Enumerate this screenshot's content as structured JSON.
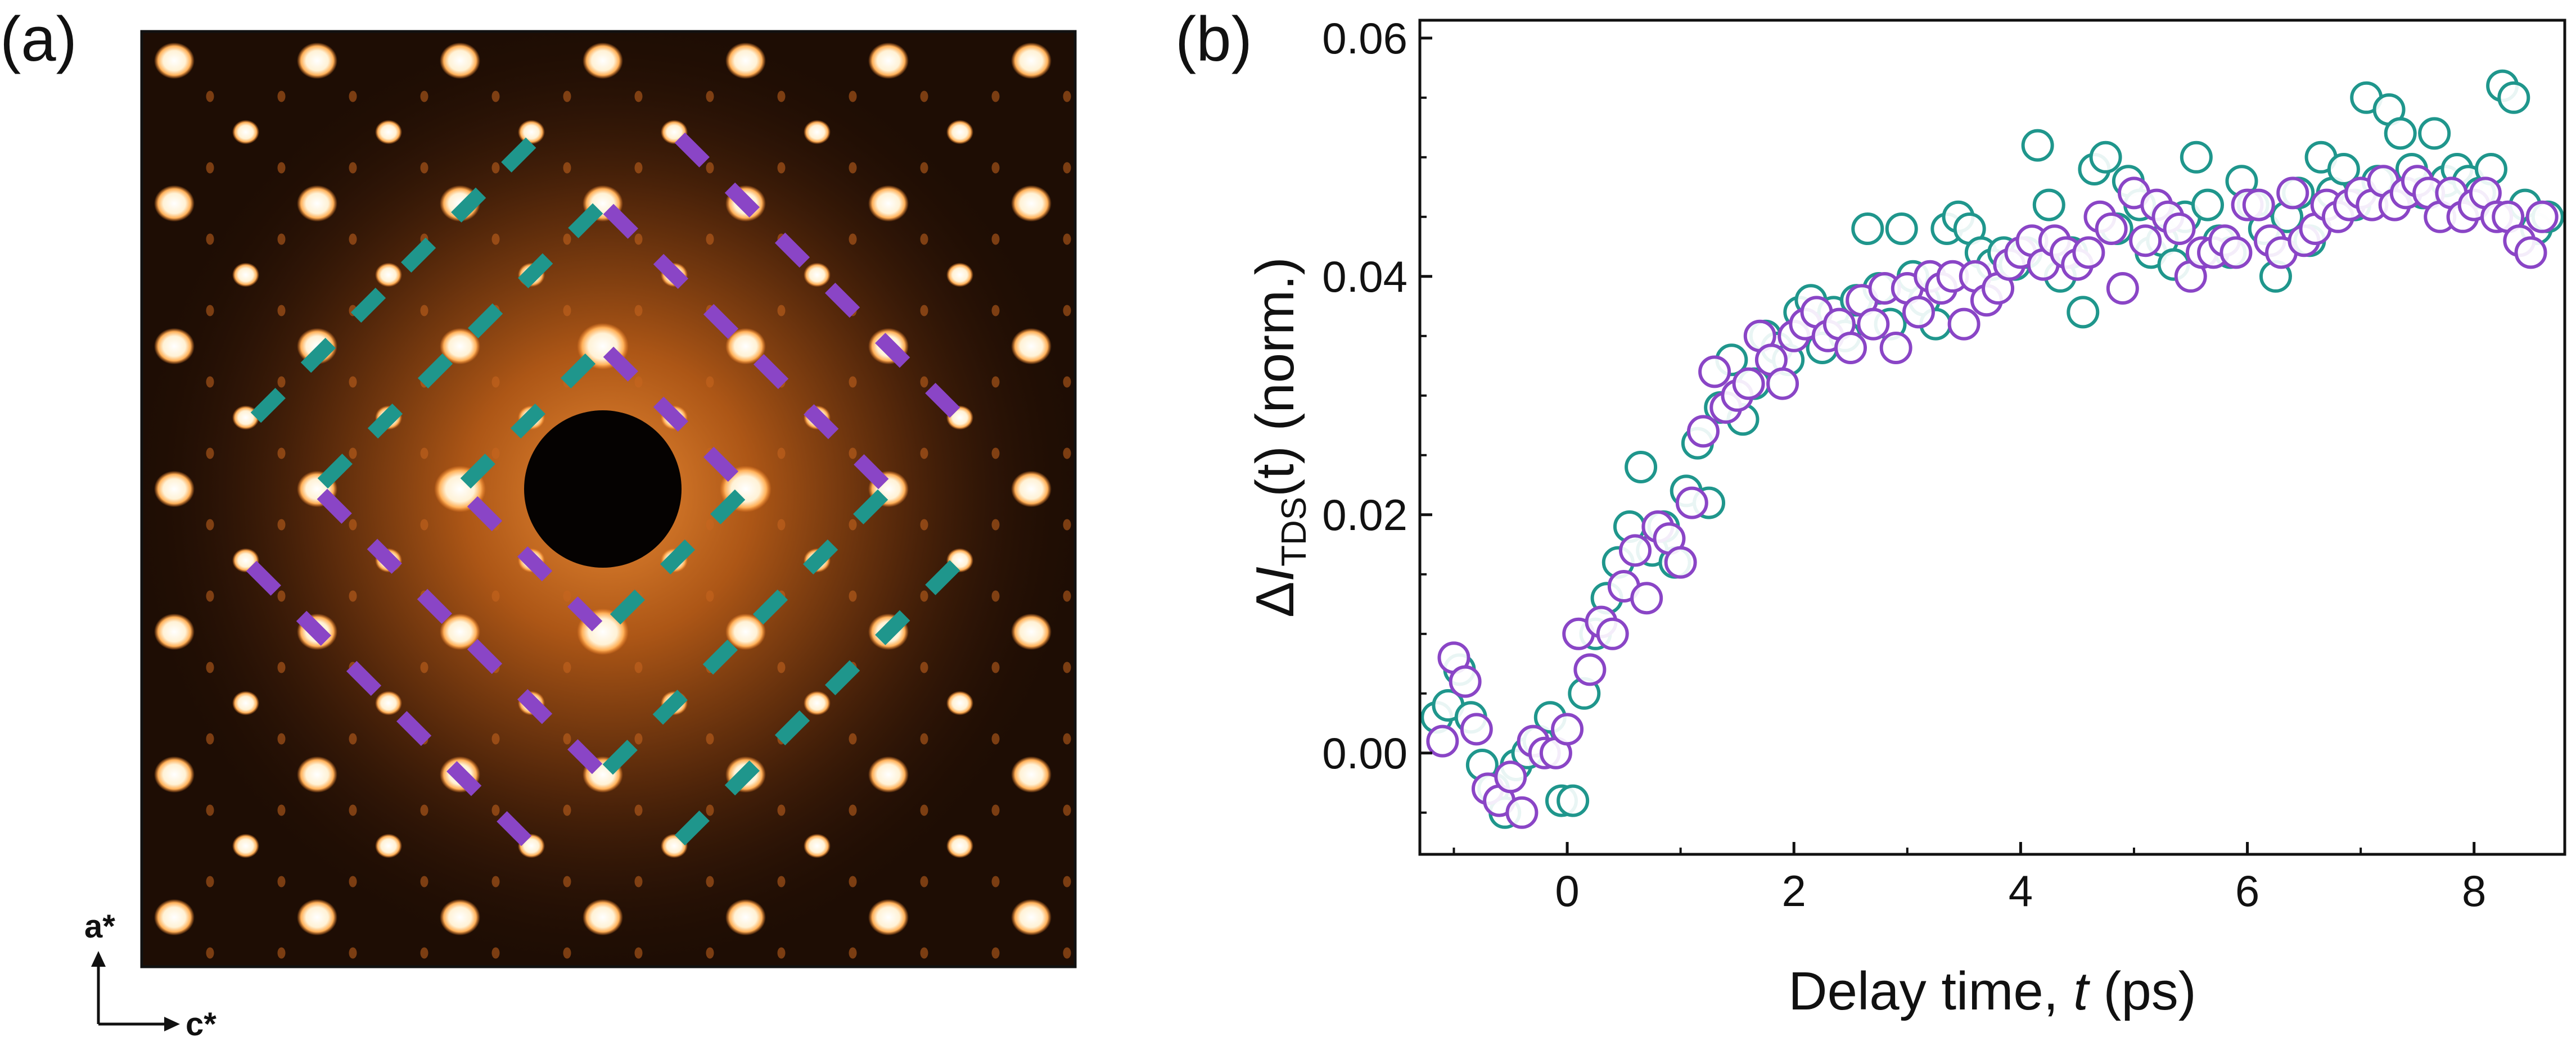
{
  "panels": {
    "a": {
      "label": "(a)"
    },
    "b": {
      "label": "(b)"
    }
  },
  "diffraction": {
    "axis_up_label": "a*",
    "axis_right_label": "c*",
    "colors": {
      "background": "#1e0d04",
      "glow": "#d5761f",
      "spot": "#fff6e3",
      "teal_dash": "#1f968c",
      "purple_dash": "#8a45c6"
    }
  },
  "chart_data": {
    "type": "scatter",
    "title": "",
    "xlabel_main": "Delay time, ",
    "xlabel_var": "t",
    "xlabel_unit": " (ps)",
    "ylabel_delta": "Δ",
    "ylabel_I": "I",
    "ylabel_sub": "TDS",
    "ylabel_rest": "(t) (norm.)",
    "xlim": [
      -1.3,
      8.8
    ],
    "ylim": [
      -0.0085,
      0.0615
    ],
    "xticks": [
      0,
      2,
      4,
      6,
      8
    ],
    "yticks": [
      0.0,
      0.02,
      0.04,
      0.06
    ],
    "ytick_labels": [
      "0.00",
      "0.02",
      "0.04",
      "0.06"
    ],
    "marker": "open-circle",
    "series": [
      {
        "color": "#1f968c",
        "x": [
          -1.15,
          -1.05,
          -0.95,
          -0.85,
          -0.75,
          -0.65,
          -0.55,
          -0.45,
          -0.35,
          -0.25,
          -0.15,
          -0.05,
          0.05,
          0.15,
          0.25,
          0.35,
          0.45,
          0.55,
          0.65,
          0.75,
          0.85,
          0.95,
          1.05,
          1.15,
          1.25,
          1.35,
          1.45,
          1.55,
          1.65,
          1.75,
          1.85,
          1.95,
          2.05,
          2.15,
          2.25,
          2.35,
          2.45,
          2.55,
          2.65,
          2.75,
          2.85,
          2.95,
          3.05,
          3.15,
          3.25,
          3.35,
          3.45,
          3.55,
          3.65,
          3.75,
          3.85,
          3.95,
          4.05,
          4.15,
          4.25,
          4.35,
          4.45,
          4.55,
          4.65,
          4.75,
          4.85,
          4.95,
          5.05,
          5.15,
          5.25,
          5.35,
          5.45,
          5.55,
          5.65,
          5.75,
          5.85,
          5.95,
          6.05,
          6.15,
          6.25,
          6.35,
          6.45,
          6.55,
          6.65,
          6.75,
          6.85,
          6.95,
          7.05,
          7.15,
          7.25,
          7.35,
          7.45,
          7.55,
          7.65,
          7.75,
          7.85,
          7.95,
          8.05,
          8.15,
          8.25,
          8.35,
          8.45,
          8.55,
          8.65
        ],
        "y": [
          0.003,
          0.004,
          0.007,
          0.003,
          -0.001,
          -0.003,
          -0.005,
          -0.001,
          0.0,
          0.001,
          0.003,
          -0.004,
          -0.004,
          0.005,
          0.01,
          0.013,
          0.016,
          0.019,
          0.024,
          0.017,
          0.019,
          0.016,
          0.022,
          0.026,
          0.021,
          0.029,
          0.033,
          0.028,
          0.031,
          0.035,
          0.034,
          0.033,
          0.037,
          0.038,
          0.034,
          0.037,
          0.035,
          0.038,
          0.044,
          0.039,
          0.036,
          0.044,
          0.04,
          0.038,
          0.036,
          0.044,
          0.045,
          0.044,
          0.042,
          0.041,
          0.042,
          0.041,
          0.042,
          0.051,
          0.046,
          0.04,
          0.042,
          0.037,
          0.049,
          0.05,
          0.044,
          0.048,
          0.046,
          0.042,
          0.043,
          0.041,
          0.045,
          0.05,
          0.046,
          0.043,
          0.042,
          0.048,
          0.046,
          0.044,
          0.04,
          0.045,
          0.047,
          0.043,
          0.05,
          0.047,
          0.049,
          0.046,
          0.055,
          0.048,
          0.054,
          0.052,
          0.049,
          0.047,
          0.052,
          0.048,
          0.049,
          0.048,
          0.047,
          0.049,
          0.056,
          0.055,
          0.046,
          0.044,
          0.045
        ]
      },
      {
        "color": "#8a45c6",
        "x": [
          -1.1,
          -1.0,
          -0.9,
          -0.8,
          -0.7,
          -0.6,
          -0.5,
          -0.4,
          -0.3,
          -0.2,
          -0.1,
          0.0,
          0.1,
          0.2,
          0.3,
          0.4,
          0.5,
          0.6,
          0.7,
          0.8,
          0.9,
          1.0,
          1.1,
          1.2,
          1.3,
          1.4,
          1.5,
          1.6,
          1.7,
          1.8,
          1.9,
          2.0,
          2.1,
          2.2,
          2.3,
          2.4,
          2.5,
          2.6,
          2.7,
          2.8,
          2.9,
          3.0,
          3.1,
          3.2,
          3.3,
          3.4,
          3.5,
          3.6,
          3.7,
          3.8,
          3.9,
          4.0,
          4.1,
          4.2,
          4.3,
          4.4,
          4.5,
          4.6,
          4.7,
          4.8,
          4.9,
          5.0,
          5.1,
          5.2,
          5.3,
          5.4,
          5.5,
          5.6,
          5.7,
          5.8,
          5.9,
          6.0,
          6.1,
          6.2,
          6.3,
          6.4,
          6.5,
          6.6,
          6.7,
          6.8,
          6.9,
          7.0,
          7.1,
          7.2,
          7.3,
          7.4,
          7.5,
          7.6,
          7.7,
          7.8,
          7.9,
          8.0,
          8.1,
          8.2,
          8.3,
          8.4,
          8.5,
          8.6
        ],
        "y": [
          0.001,
          0.008,
          0.006,
          0.002,
          -0.003,
          -0.004,
          -0.002,
          -0.005,
          0.001,
          0.0,
          0.0,
          0.002,
          0.01,
          0.007,
          0.011,
          0.01,
          0.014,
          0.017,
          0.013,
          0.019,
          0.018,
          0.016,
          0.021,
          0.027,
          0.032,
          0.029,
          0.03,
          0.031,
          0.035,
          0.033,
          0.031,
          0.035,
          0.036,
          0.037,
          0.035,
          0.036,
          0.034,
          0.038,
          0.036,
          0.039,
          0.034,
          0.039,
          0.037,
          0.04,
          0.039,
          0.04,
          0.036,
          0.04,
          0.038,
          0.039,
          0.041,
          0.042,
          0.043,
          0.041,
          0.043,
          0.042,
          0.041,
          0.042,
          0.045,
          0.044,
          0.039,
          0.047,
          0.043,
          0.046,
          0.045,
          0.044,
          0.04,
          0.042,
          0.042,
          0.043,
          0.042,
          0.046,
          0.046,
          0.043,
          0.042,
          0.047,
          0.043,
          0.044,
          0.046,
          0.045,
          0.046,
          0.047,
          0.046,
          0.048,
          0.046,
          0.047,
          0.048,
          0.047,
          0.045,
          0.047,
          0.045,
          0.046,
          0.047,
          0.045,
          0.045,
          0.043,
          0.042,
          0.045
        ]
      }
    ]
  }
}
